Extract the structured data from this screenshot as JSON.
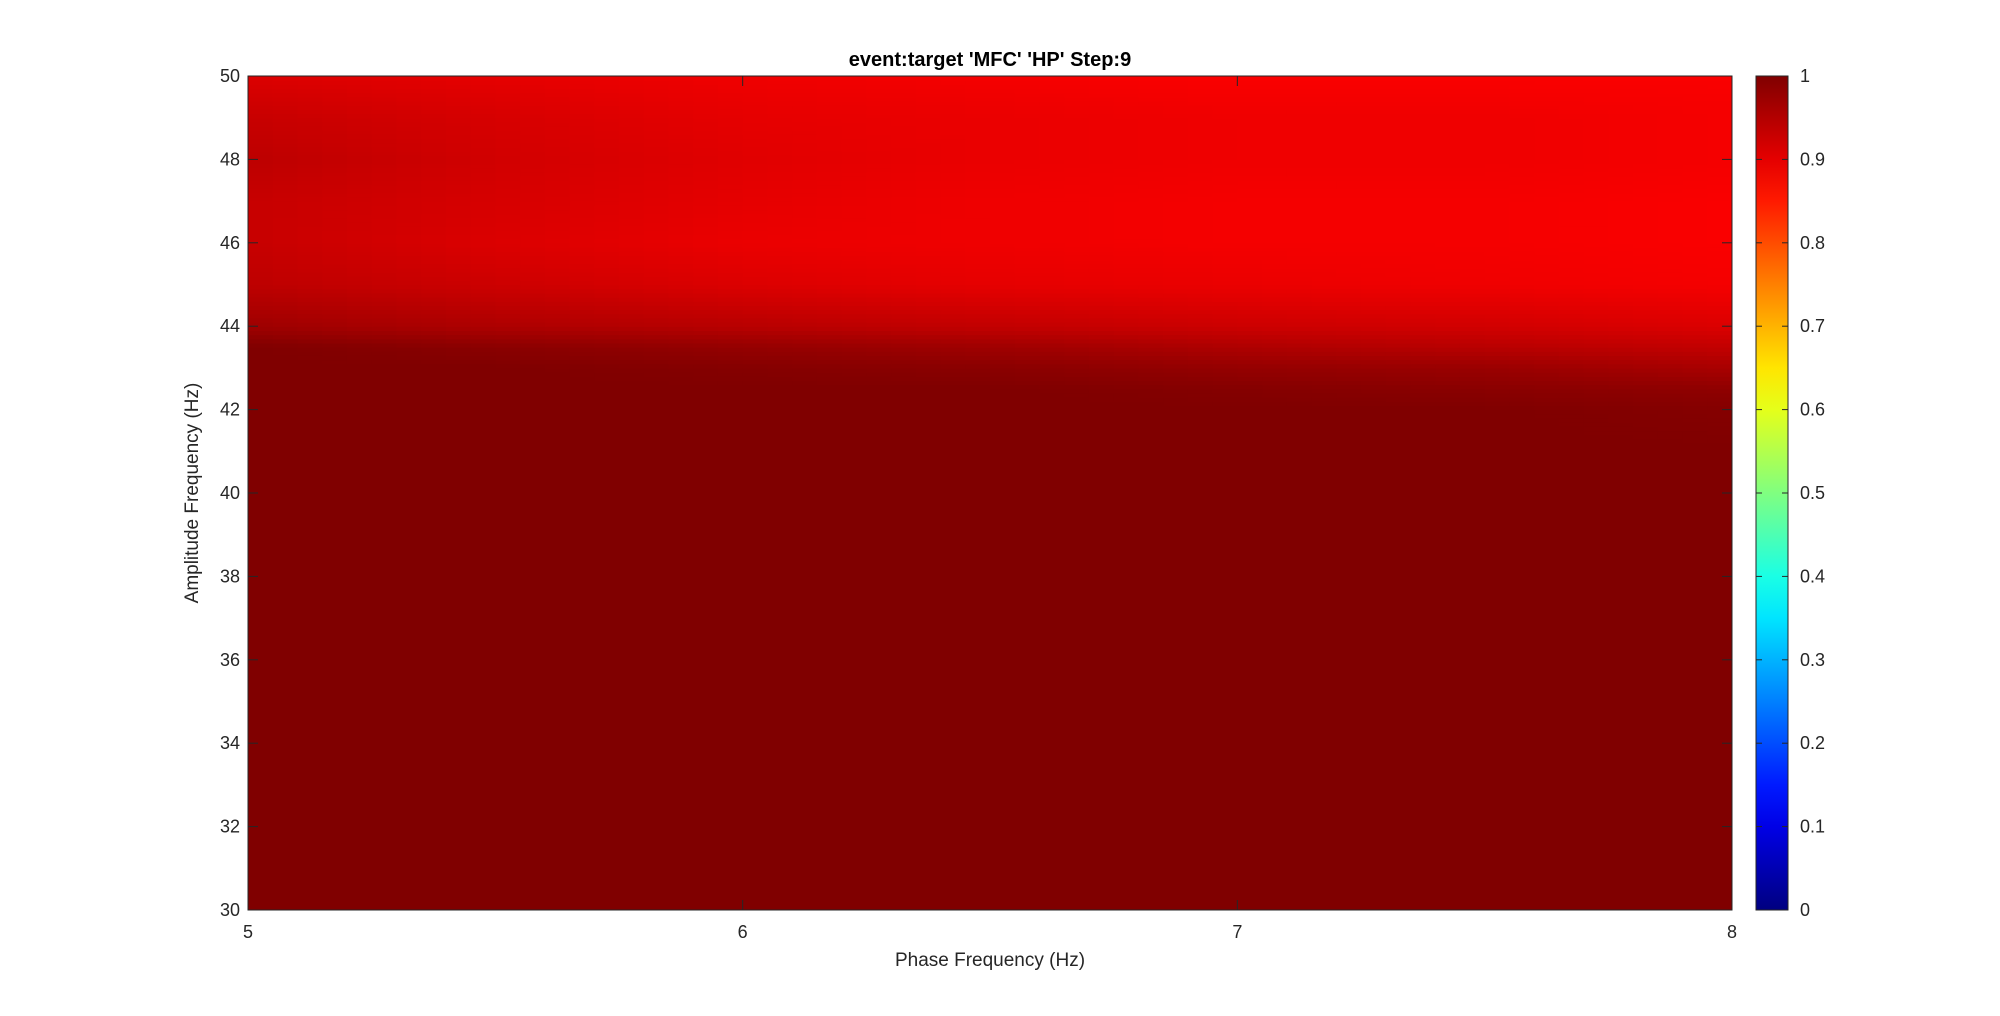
{
  "chart_data": {
    "type": "heatmap",
    "title": "event:target 'MFC'  'HP' Step:9",
    "xlabel": "Phase Frequency (Hz)",
    "ylabel": "Amplitude Frequency (Hz)",
    "xlim": [
      5,
      8
    ],
    "ylim": [
      30,
      50
    ],
    "xticks": [
      5,
      6,
      7,
      8
    ],
    "xtick_labels": [
      "5",
      "6",
      "7",
      "8"
    ],
    "yticks": [
      30,
      32,
      34,
      36,
      38,
      40,
      42,
      44,
      46,
      48,
      50
    ],
    "ytick_labels": [
      "30",
      "32",
      "34",
      "36",
      "38",
      "40",
      "42",
      "44",
      "46",
      "48",
      "50"
    ],
    "colormap": "jet",
    "clim": [
      0,
      1
    ],
    "colorbar_ticks": [
      0,
      0.1,
      0.2,
      0.3,
      0.4,
      0.5,
      0.6,
      0.7,
      0.8,
      0.9,
      1
    ],
    "colorbar_tick_labels": [
      "0",
      "0.1",
      "0.2",
      "0.3",
      "0.4",
      "0.5",
      "0.6",
      "0.7",
      "0.8",
      "0.9",
      "1"
    ],
    "x": [
      5,
      5.5,
      6,
      6.5,
      7,
      7.5,
      8
    ],
    "y": [
      30,
      32,
      34,
      36,
      38,
      40,
      41,
      42,
      42.5,
      43,
      43.5,
      44,
      45,
      46,
      47,
      48,
      49,
      50
    ],
    "z": [
      [
        1.0,
        1.0,
        1.0,
        1.0,
        1.0,
        1.0,
        1.0
      ],
      [
        1.0,
        1.0,
        1.0,
        1.0,
        1.0,
        1.0,
        1.0
      ],
      [
        1.0,
        1.0,
        1.0,
        1.0,
        1.0,
        1.0,
        1.0
      ],
      [
        1.0,
        1.0,
        1.0,
        1.0,
        1.0,
        1.0,
        1.0
      ],
      [
        1.0,
        1.0,
        1.0,
        1.0,
        1.0,
        1.0,
        1.0
      ],
      [
        1.0,
        1.0,
        1.0,
        1.0,
        1.0,
        1.0,
        1.0
      ],
      [
        1.0,
        1.0,
        1.0,
        1.0,
        1.0,
        1.0,
        1.0
      ],
      [
        1.0,
        1.0,
        1.0,
        1.0,
        1.0,
        1.0,
        0.995
      ],
      [
        1.0,
        1.0,
        1.0,
        1.0,
        0.995,
        0.99,
        0.985
      ],
      [
        1.0,
        1.0,
        0.995,
        0.99,
        0.98,
        0.975,
        0.96
      ],
      [
        1.0,
        0.99,
        0.98,
        0.97,
        0.955,
        0.945,
        0.935
      ],
      [
        0.97,
        0.955,
        0.945,
        0.935,
        0.925,
        0.92,
        0.91
      ],
      [
        0.94,
        0.925,
        0.91,
        0.9,
        0.895,
        0.89,
        0.885
      ],
      [
        0.93,
        0.91,
        0.895,
        0.89,
        0.885,
        0.885,
        0.88
      ],
      [
        0.93,
        0.915,
        0.9,
        0.89,
        0.885,
        0.885,
        0.88
      ],
      [
        0.94,
        0.92,
        0.905,
        0.895,
        0.89,
        0.89,
        0.885
      ],
      [
        0.93,
        0.915,
        0.9,
        0.895,
        0.89,
        0.89,
        0.885
      ],
      [
        0.91,
        0.9,
        0.89,
        0.885,
        0.88,
        0.88,
        0.88
      ]
    ]
  }
}
